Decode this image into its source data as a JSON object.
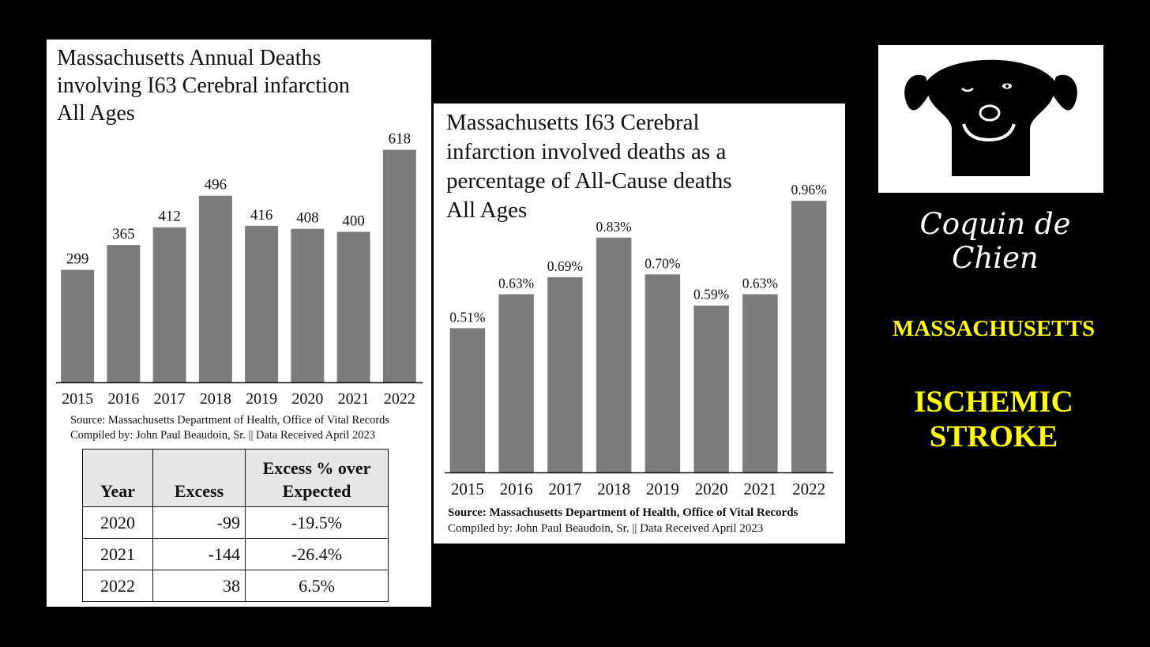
{
  "colors": {
    "bar": "#7b7b7b",
    "background": "#000000",
    "accent_text": "#ffff00"
  },
  "chart_data": [
    {
      "type": "bar",
      "title": "Massachusetts Annual Deaths involving I63 Cerebral infarction All Ages",
      "title_lines": [
        "Massachusetts Annual Deaths",
        "involving I63 Cerebral infarction",
        "All Ages"
      ],
      "categories": [
        "2015",
        "2016",
        "2017",
        "2018",
        "2019",
        "2020",
        "2021",
        "2022"
      ],
      "values": [
        299,
        365,
        412,
        496,
        416,
        408,
        400,
        618
      ],
      "value_labels": [
        "299",
        "365",
        "412",
        "496",
        "416",
        "408",
        "400",
        "618"
      ],
      "ylim": [
        0,
        720
      ],
      "grid": false,
      "source_lines": [
        "Source:  Massachusetts Department of Health, Office of Vital Records",
        "Compiled by:  John Paul Beaudoin, Sr. || Data Received April 2023"
      ]
    },
    {
      "type": "bar",
      "title": "Massachusetts I63 Cerebral infarction involved deaths as a percentage of All-Cause deaths All Ages",
      "title_lines": [
        "Massachusetts I63 Cerebral",
        "infarction involved deaths as a",
        "percentage of All-Cause deaths",
        "All Ages"
      ],
      "categories": [
        "2015",
        "2016",
        "2017",
        "2018",
        "2019",
        "2020",
        "2021",
        "2022"
      ],
      "values": [
        0.51,
        0.63,
        0.69,
        0.83,
        0.7,
        0.59,
        0.63,
        0.96
      ],
      "value_labels": [
        "0.51%",
        "0.63%",
        "0.69%",
        "0.83%",
        "0.70%",
        "0.59%",
        "0.63%",
        "0.96%"
      ],
      "ylim": [
        0,
        1.05
      ],
      "grid": false,
      "source_bold": "Source:  Massachusetts Department of Health, Office of Vital Records",
      "source_line2": "Compiled by:  John Paul Beaudoin, Sr. || Data Received April 2023"
    },
    {
      "type": "table",
      "headers": [
        "Year",
        "Excess",
        "Excess % over Expected"
      ],
      "header_lines": [
        [
          "Year"
        ],
        [
          "Excess"
        ],
        [
          "Excess % over",
          "Expected"
        ]
      ],
      "rows": [
        [
          "2020",
          "-99",
          "-19.5%"
        ],
        [
          "2021",
          "-144",
          "-26.4%"
        ],
        [
          "2022",
          "38",
          "6.5%"
        ]
      ]
    }
  ],
  "branding": {
    "logo_text": "Coquin de Chien",
    "logo_icon": "dog-face-icon"
  },
  "headline": {
    "state": "MASSACHUSETTS",
    "condition_lines": [
      "ISCHEMIC",
      "STROKE"
    ]
  }
}
